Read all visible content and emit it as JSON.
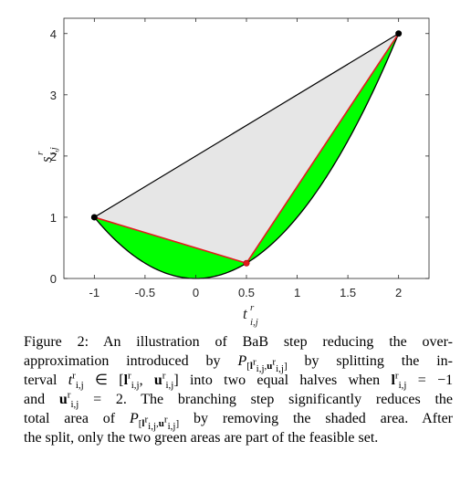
{
  "chart_data": {
    "type": "line",
    "xlabel": "t",
    "xlabel_sup": "r",
    "xlabel_sub": "i,j",
    "ylabel": "s",
    "ylabel_sup": "r",
    "ylabel_sub": "i,j",
    "xlim": [
      -1.3,
      2.3
    ],
    "ylim": [
      0,
      4.25
    ],
    "x_ticks": [
      -1,
      -0.5,
      0,
      0.5,
      1,
      1.5,
      2
    ],
    "x_tick_labels": [
      "-1",
      "-0.5",
      "0",
      "0.5",
      "1",
      "1.5",
      "2"
    ],
    "y_ticks": [
      0,
      1,
      2,
      3,
      4
    ],
    "y_tick_labels": [
      "0",
      "1",
      "2",
      "3",
      "4"
    ],
    "curve": {
      "function": "x^2",
      "x_range": [
        -1,
        2
      ]
    },
    "points": [
      {
        "x": -1,
        "y": 1,
        "color": "#000000"
      },
      {
        "x": 2,
        "y": 4,
        "color": "#000000"
      },
      {
        "x": 0.5,
        "y": 0.25,
        "color": "#e41a1c"
      }
    ],
    "original_chord": {
      "from": [
        -1,
        1
      ],
      "to": [
        2,
        4
      ],
      "color": "#000000"
    },
    "split_chords": [
      {
        "from": [
          -1,
          1
        ],
        "to": [
          0.5,
          0.25
        ],
        "color": "#e41a1c"
      },
      {
        "from": [
          0.5,
          0.25
        ],
        "to": [
          2,
          4
        ],
        "color": "#e41a1c"
      }
    ],
    "removed_area_color": "#e6e6e6",
    "feasible_area_color": "#00ff00",
    "grid": false
  },
  "caption": {
    "line1": "Figure 2: An illustration of BaB step reducing the over-",
    "line2_a": "approximation introduced by",
    "line2_b": "by splitting the in-",
    "line3_a": "terval",
    "line3_b": "into two equal halves when",
    "line3_c": "= −1",
    "line4_a": "and",
    "line4_b": "= 2. The branching step significantly reduces the",
    "line5_a": "total area of",
    "line5_b": "by removing the shaded area. After",
    "line6": "the split, only the two green areas are part of the feasible set.",
    "P": "P",
    "l": "l",
    "u": "u",
    "t": "t",
    "r": "r",
    "ij": "i,j",
    "elem": "∈"
  }
}
